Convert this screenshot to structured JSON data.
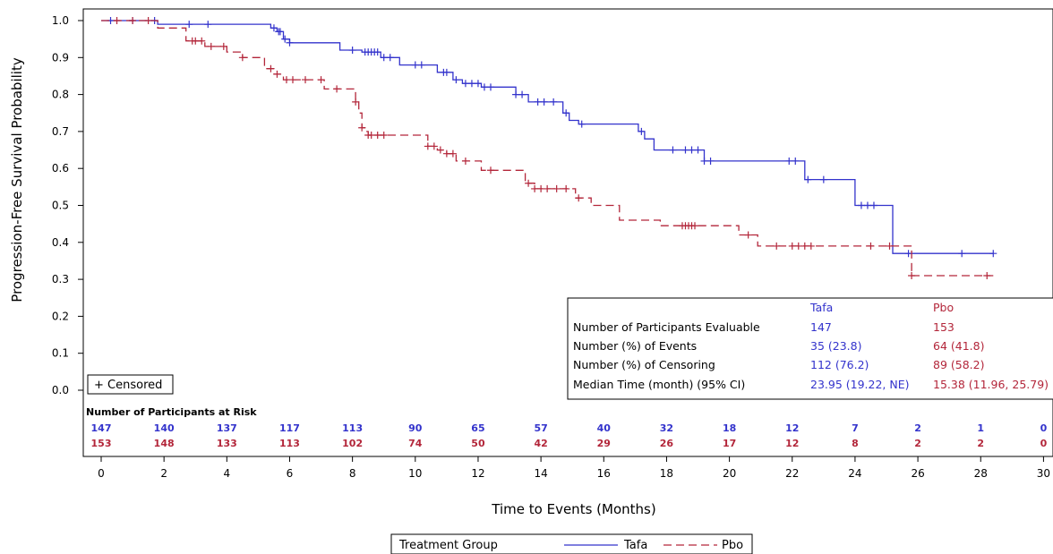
{
  "colors": {
    "tafa": "#3333cc",
    "pbo": "#b3263a"
  },
  "chart_data": {
    "type": "line",
    "subtype": "kaplan-meier step curve",
    "xlabel": "Time to Events (Months)",
    "ylabel": "Progression-Free Survival Probability",
    "xlim": [
      0,
      30
    ],
    "ylim": [
      0,
      1.0
    ],
    "x_ticks": [
      0,
      2,
      4,
      6,
      8,
      10,
      12,
      14,
      16,
      18,
      20,
      22,
      24,
      26,
      28,
      30
    ],
    "y_ticks": [
      "0.0",
      "0.1",
      "0.2",
      "0.3",
      "0.4",
      "0.5",
      "0.6",
      "0.7",
      "0.8",
      "0.9",
      "1.0"
    ],
    "grid": false,
    "series": [
      {
        "name": "Tafa",
        "line_style": "solid",
        "step_points": [
          [
            0,
            1.0
          ],
          [
            1.8,
            0.99
          ],
          [
            5.4,
            0.98
          ],
          [
            5.6,
            0.97
          ],
          [
            5.8,
            0.95
          ],
          [
            6.0,
            0.94
          ],
          [
            7.6,
            0.92
          ],
          [
            8.3,
            0.915
          ],
          [
            8.9,
            0.9
          ],
          [
            9.5,
            0.88
          ],
          [
            10.7,
            0.86
          ],
          [
            11.2,
            0.84
          ],
          [
            11.5,
            0.83
          ],
          [
            12.1,
            0.82
          ],
          [
            13.2,
            0.8
          ],
          [
            13.6,
            0.78
          ],
          [
            14.7,
            0.75
          ],
          [
            14.9,
            0.73
          ],
          [
            15.2,
            0.72
          ],
          [
            17.1,
            0.7
          ],
          [
            17.3,
            0.68
          ],
          [
            17.6,
            0.65
          ],
          [
            19.2,
            0.62
          ],
          [
            22.4,
            0.57
          ],
          [
            24.0,
            0.5
          ],
          [
            25.2,
            0.37
          ],
          [
            28.4,
            0.37
          ]
        ],
        "censor_x": [
          0.3,
          1.0,
          1.7,
          2.8,
          3.4,
          5.5,
          5.65,
          5.7,
          5.85,
          6.0,
          8.0,
          8.4,
          8.5,
          8.6,
          8.7,
          8.8,
          9.0,
          9.2,
          10.0,
          10.2,
          10.9,
          11.0,
          11.3,
          11.6,
          11.8,
          12.0,
          12.2,
          12.4,
          13.2,
          13.4,
          13.9,
          14.1,
          14.4,
          14.8,
          15.3,
          17.2,
          18.2,
          18.6,
          18.8,
          19.0,
          19.2,
          19.4,
          21.9,
          22.1,
          22.5,
          23.0,
          24.2,
          24.4,
          24.6,
          25.7,
          27.4,
          28.4
        ]
      },
      {
        "name": "Pbo",
        "line_style": "dashed",
        "step_points": [
          [
            0,
            1.0
          ],
          [
            1.8,
            0.98
          ],
          [
            2.7,
            0.945
          ],
          [
            3.3,
            0.93
          ],
          [
            4.0,
            0.915
          ],
          [
            4.5,
            0.9
          ],
          [
            5.2,
            0.87
          ],
          [
            5.5,
            0.855
          ],
          [
            5.8,
            0.84
          ],
          [
            7.1,
            0.815
          ],
          [
            8.1,
            0.78
          ],
          [
            8.2,
            0.75
          ],
          [
            8.3,
            0.71
          ],
          [
            8.4,
            0.7
          ],
          [
            8.5,
            0.69
          ],
          [
            10.4,
            0.66
          ],
          [
            10.7,
            0.65
          ],
          [
            11.0,
            0.64
          ],
          [
            11.3,
            0.62
          ],
          [
            12.1,
            0.595
          ],
          [
            13.5,
            0.56
          ],
          [
            13.8,
            0.545
          ],
          [
            15.1,
            0.52
          ],
          [
            15.6,
            0.5
          ],
          [
            16.5,
            0.46
          ],
          [
            17.3,
            0.46
          ],
          [
            17.8,
            0.445
          ],
          [
            20.3,
            0.42
          ],
          [
            20.9,
            0.39
          ],
          [
            25.8,
            0.31
          ],
          [
            28.4,
            0.31
          ]
        ],
        "censor_x": [
          0.5,
          1.0,
          1.5,
          2.9,
          3.0,
          3.2,
          3.5,
          3.9,
          4.5,
          5.4,
          5.6,
          5.9,
          6.1,
          6.5,
          7.0,
          7.5,
          8.1,
          8.3,
          8.5,
          8.6,
          8.8,
          9.0,
          10.4,
          10.6,
          10.8,
          11.0,
          11.2,
          11.6,
          12.4,
          13.6,
          13.8,
          14.0,
          14.2,
          14.5,
          14.8,
          15.2,
          18.5,
          18.6,
          18.7,
          18.8,
          18.9,
          20.6,
          21.5,
          22.0,
          22.2,
          22.4,
          22.6,
          24.5,
          25.1,
          25.8,
          28.2
        ]
      }
    ],
    "censor_legend": "+ Censored",
    "risk_table": {
      "title": "Number of Participants at Risk",
      "x": [
        0,
        2,
        4,
        6,
        8,
        10,
        12,
        14,
        16,
        18,
        20,
        22,
        24,
        26,
        28,
        30
      ],
      "tafa": [
        "147",
        "140",
        "137",
        "117",
        "113",
        "90",
        "65",
        "57",
        "40",
        "32",
        "18",
        "12",
        "7",
        "2",
        "1",
        "0"
      ],
      "pbo": [
        "153",
        "148",
        "133",
        "113",
        "102",
        "74",
        "50",
        "42",
        "29",
        "26",
        "17",
        "12",
        "8",
        "2",
        "2",
        "0"
      ]
    },
    "stats_table": {
      "headers": [
        "",
        "Tafa",
        "Pbo"
      ],
      "rows": [
        [
          "Number of Participants Evaluable",
          "147",
          "153"
        ],
        [
          "Number (%) of Events",
          "35 (23.8)",
          "64 (41.8)"
        ],
        [
          "Number (%) of Censoring",
          "112 (76.2)",
          "89 (58.2)"
        ],
        [
          "Median Time (month) (95% CI)",
          "23.95 (19.22, NE)",
          "15.38 (11.96, 25.79)"
        ]
      ]
    },
    "legend": {
      "title": "Treatment Group",
      "items": [
        "Tafa",
        "Pbo"
      ]
    }
  }
}
